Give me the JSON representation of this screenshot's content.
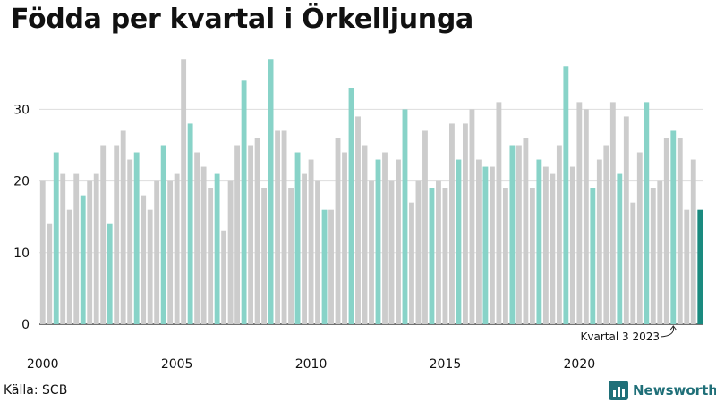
{
  "title": "Födda per kvartal i Örkelljunga",
  "source": "Källa: SCB",
  "brand": {
    "name": "Newsworthy",
    "icon": "newsworthy-logo-icon"
  },
  "colors": {
    "regular": "#cccccc",
    "highlight": "#88d3c8",
    "latest": "#1a8a7f",
    "grid": "#dddddd",
    "axis": "#222222",
    "brand": "#1f6f78"
  },
  "chart_data": {
    "type": "bar",
    "title": "Födda per kvartal i Örkelljunga",
    "xlabel": "",
    "ylabel": "",
    "ylim": [
      0,
      38
    ],
    "yticks": [
      0,
      10,
      20,
      30
    ],
    "grid": true,
    "x_tick_labels": [
      "2000",
      "2005",
      "2010",
      "2015",
      "2020"
    ],
    "highlight_quarter": 2,
    "start_year": 2000,
    "values": [
      20,
      14,
      24,
      21,
      16,
      21,
      18,
      20,
      21,
      25,
      14,
      25,
      27,
      23,
      24,
      18,
      16,
      20,
      25,
      20,
      21,
      37,
      28,
      24,
      22,
      19,
      21,
      13,
      20,
      25,
      34,
      25,
      26,
      19,
      37,
      27,
      27,
      19,
      24,
      21,
      23,
      20,
      16,
      16,
      26,
      24,
      33,
      29,
      25,
      20,
      23,
      24,
      20,
      23,
      30,
      17,
      20,
      27,
      19,
      20,
      19,
      28,
      23,
      28,
      30,
      23,
      22,
      22,
      31,
      19,
      25,
      25,
      26,
      19,
      23,
      22,
      21,
      25,
      36,
      22,
      31,
      30,
      19,
      23,
      25,
      31,
      21,
      29,
      17,
      24,
      31,
      19,
      20,
      26,
      27,
      26,
      16,
      23,
      16
    ],
    "annotation": {
      "text": "Kvartal 3 2023",
      "index": 94
    }
  }
}
